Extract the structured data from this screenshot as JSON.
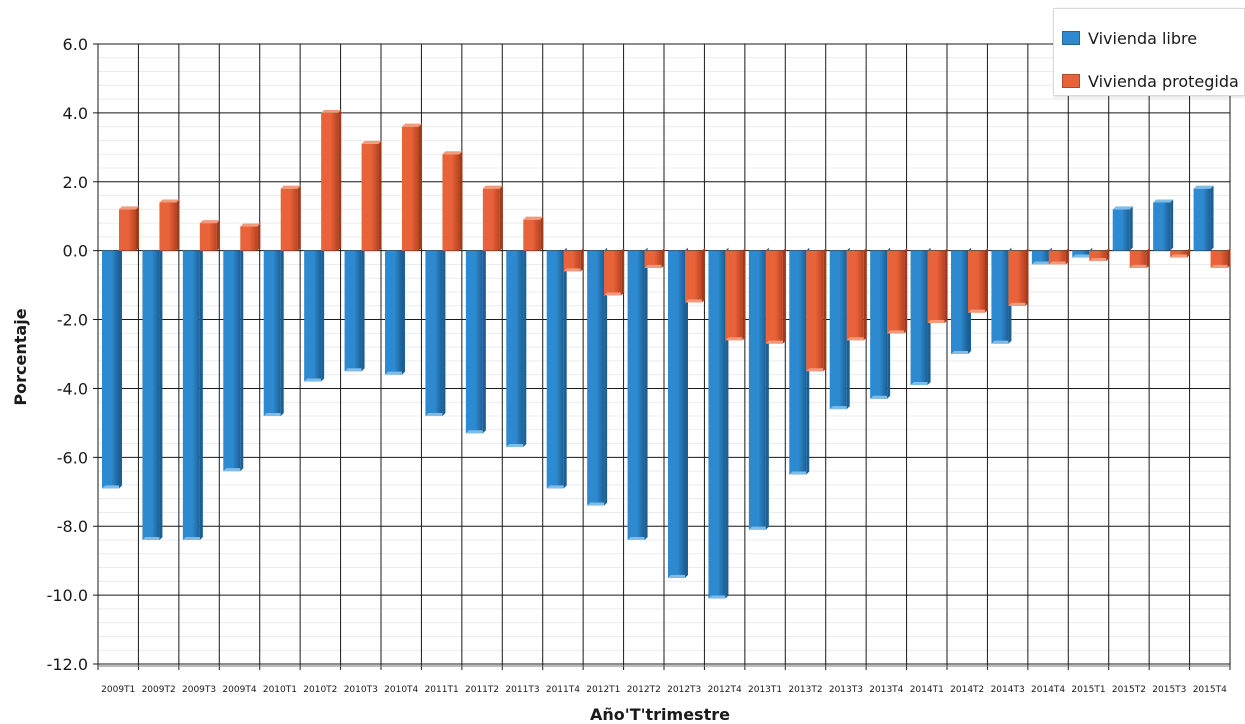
{
  "chart_data": {
    "type": "bar",
    "title": "",
    "xlabel": "Año'T'trimestre",
    "ylabel": "Porcentaje",
    "ylim": [
      -12,
      6
    ],
    "yticks": [
      "6.0",
      "4.0",
      "2.0",
      "0.0",
      "-2.0",
      "-4.0",
      "-6.0",
      "-8.0",
      "-10.0",
      "-12.0"
    ],
    "ytick_values": [
      6,
      4,
      2,
      0,
      -2,
      -4,
      -6,
      -8,
      -10,
      -12
    ],
    "grid": true,
    "legend_position": "top-right",
    "categories": [
      "2009T1",
      "2009T2",
      "2009T3",
      "2009T4",
      "2010T1",
      "2010T2",
      "2010T3",
      "2010T4",
      "2011T1",
      "2011T2",
      "2011T3",
      "2011T4",
      "2012T1",
      "2012T2",
      "2012T3",
      "2012T4",
      "2013T1",
      "2013T2",
      "2013T3",
      "2013T4",
      "2014T1",
      "2014T2",
      "2014T3",
      "2014T4",
      "2015T1",
      "2015T2",
      "2015T3",
      "2015T4"
    ],
    "series": [
      {
        "name": "Vivienda libre",
        "color": "#2e8ad0",
        "values": [
          -6.9,
          -8.4,
          -8.4,
          -6.4,
          -4.8,
          -3.8,
          -3.5,
          -3.6,
          -4.8,
          -5.3,
          -5.7,
          -6.9,
          -7.4,
          -8.4,
          -9.5,
          -10.1,
          -8.1,
          -6.5,
          -4.6,
          -4.3,
          -3.9,
          -3.0,
          -2.7,
          -0.4,
          -0.2,
          1.2,
          1.4,
          1.8
        ]
      },
      {
        "name": "Vivienda protegida",
        "color": "#e8623a",
        "values": [
          1.2,
          1.4,
          0.8,
          0.7,
          1.8,
          4.0,
          3.1,
          3.6,
          2.8,
          1.8,
          0.9,
          -0.6,
          -1.3,
          -0.5,
          -1.5,
          -2.6,
          -2.7,
          -3.5,
          -2.6,
          -2.4,
          -2.1,
          -1.8,
          -1.6,
          -0.4,
          -0.3,
          -0.5,
          -0.2,
          -0.5
        ]
      }
    ]
  }
}
